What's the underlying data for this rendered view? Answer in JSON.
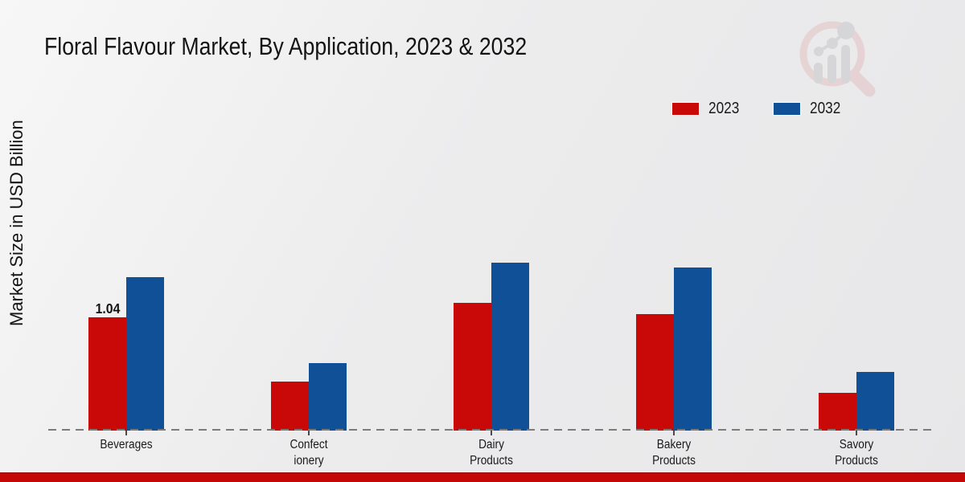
{
  "title": "Floral Flavour Market, By Application, 2023 & 2032",
  "y_axis_label": "Market Size in USD Billion",
  "legend": {
    "position": "top-right",
    "items": [
      {
        "label": "2023",
        "color": "#c90808"
      },
      {
        "label": "2032",
        "color": "#0f5096"
      }
    ]
  },
  "colors": {
    "bar_2023": "#c90808",
    "bar_2032": "#0f5096",
    "baseline_dash": "#7c7c7c",
    "bottom_strip": "#c40808",
    "background": "#ececed",
    "text": "#141414",
    "watermark_pink": "#e3c1c3",
    "watermark_grey": "#c7c7cb"
  },
  "watermark_icon": "magnifier-bar-chart-logo",
  "chart_data": {
    "type": "bar",
    "title": "Floral Flavour Market, By Application, 2023 & 2032",
    "ylabel": "Market Size in USD Billion",
    "xlabel": "",
    "categories": [
      "Beverages",
      "Confectionery",
      "Dairy Products",
      "Bakery Products",
      "Savory Products"
    ],
    "category_label_lines": [
      [
        "Beverages"
      ],
      [
        "Confect",
        "ionery"
      ],
      [
        "Dairy",
        "Products"
      ],
      [
        "Bakery",
        "Products"
      ],
      [
        "Savory",
        "Products"
      ]
    ],
    "series": [
      {
        "name": "2023",
        "color": "#c90808",
        "values": [
          1.04,
          0.45,
          1.17,
          1.07,
          0.35
        ]
      },
      {
        "name": "2032",
        "color": "#0f5096",
        "values": [
          1.41,
          0.62,
          1.54,
          1.5,
          0.54
        ]
      }
    ],
    "data_labels": [
      {
        "series_index": 0,
        "category_index": 0,
        "text": "1.04"
      }
    ],
    "ylim": [
      0,
      1.8
    ],
    "grid": false,
    "baseline_style": "dashed",
    "legend_position": "top-right"
  }
}
